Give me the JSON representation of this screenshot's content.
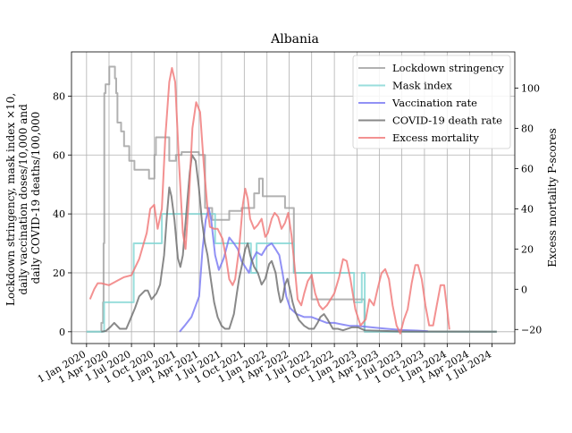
{
  "chart_data": {
    "type": "line",
    "title": "Albania",
    "ylabel_left_lines": [
      "Lockdown stringency, mask index ×10,",
      "daily vaccination doses/10,000 and",
      "daily COVID-19 deaths/100,000"
    ],
    "ylabel_right": "Excess mortality P-scores",
    "xlim": [
      "2019-11-01",
      "2024-10-01"
    ],
    "ylim_left": [
      -4,
      95
    ],
    "ylim_right": [
      -27,
      118
    ],
    "x_ticks": [
      "2020-01-01",
      "2020-04-01",
      "2020-07-01",
      "2020-10-01",
      "2021-01-01",
      "2021-04-01",
      "2021-07-01",
      "2021-10-01",
      "2022-01-01",
      "2022-04-01",
      "2022-07-01",
      "2022-10-01",
      "2023-01-01",
      "2023-04-01",
      "2023-07-01",
      "2023-10-01",
      "2024-01-01",
      "2024-04-01",
      "2024-07-01"
    ],
    "x_tick_labels": [
      "1 Jan 2020",
      "1 Apr 2020",
      "1 Jul 2020",
      "1 Oct 2020",
      "1 Jan 2021",
      "1 Apr 2021",
      "1 Jul 2021",
      "1 Oct 2021",
      "1 Jan 2022",
      "1 Apr 2022",
      "1 Jul 2022",
      "1 Oct 2022",
      "1 Jan 2023",
      "1 Apr 2023",
      "1 Jul 2023",
      "1 Oct 2023",
      "1 Jan 2024",
      "1 Apr 2024",
      "1 Jul 2024"
    ],
    "y_ticks_left": [
      0,
      20,
      40,
      60,
      80
    ],
    "y_ticks_right": [
      -20,
      0,
      20,
      40,
      60,
      80,
      100
    ],
    "grid": true,
    "legend_position": "top-right",
    "series": [
      {
        "name": "Lockdown stringency",
        "axis": "left",
        "color": "#9e9e9e",
        "step": true,
        "points": [
          [
            "2020-01-01",
            0
          ],
          [
            "2020-02-25",
            0
          ],
          [
            "2020-03-01",
            3
          ],
          [
            "2020-03-08",
            10
          ],
          [
            "2020-03-10",
            30
          ],
          [
            "2020-03-13",
            81
          ],
          [
            "2020-03-18",
            84
          ],
          [
            "2020-04-02",
            90
          ],
          [
            "2020-04-25",
            86
          ],
          [
            "2020-04-30",
            81
          ],
          [
            "2020-05-05",
            71
          ],
          [
            "2020-05-20",
            68
          ],
          [
            "2020-06-01",
            63
          ],
          [
            "2020-06-22",
            58
          ],
          [
            "2020-07-13",
            55
          ],
          [
            "2020-09-10",
            52
          ],
          [
            "2020-10-02",
            60
          ],
          [
            "2020-10-08",
            66
          ],
          [
            "2020-12-01",
            58
          ],
          [
            "2020-12-28",
            60
          ],
          [
            "2021-01-20",
            61
          ],
          [
            "2021-03-31",
            60
          ],
          [
            "2021-04-25",
            42
          ],
          [
            "2021-05-24",
            38
          ],
          [
            "2021-07-01",
            38
          ],
          [
            "2021-08-01",
            41
          ],
          [
            "2021-09-20",
            42
          ],
          [
            "2021-11-10",
            47
          ],
          [
            "2021-11-30",
            52
          ],
          [
            "2021-12-15",
            46
          ],
          [
            "2022-03-15",
            42
          ],
          [
            "2022-04-20",
            20
          ],
          [
            "2022-07-01",
            11
          ],
          [
            "2022-10-15",
            11
          ],
          [
            "2023-01-31",
            0
          ],
          [
            "2024-07-20",
            0
          ]
        ]
      },
      {
        "name": "Mask index",
        "axis": "left",
        "color": "#7fd6d3",
        "step": true,
        "points": [
          [
            "2020-01-01",
            0
          ],
          [
            "2020-02-25",
            0
          ],
          [
            "2020-03-12",
            10
          ],
          [
            "2020-07-10",
            30
          ],
          [
            "2020-11-01",
            40
          ],
          [
            "2021-06-05",
            30
          ],
          [
            "2021-07-01",
            30
          ],
          [
            "2021-10-15",
            30
          ],
          [
            "2021-10-28",
            20
          ],
          [
            "2021-11-20",
            30
          ],
          [
            "2022-04-20",
            20
          ],
          [
            "2022-12-20",
            10
          ],
          [
            "2023-01-20",
            20
          ],
          [
            "2023-02-01",
            0
          ],
          [
            "2024-07-20",
            0
          ]
        ]
      },
      {
        "name": "Vaccination rate",
        "axis": "left",
        "color": "#7676f2",
        "step": false,
        "points": [
          [
            "2021-01-12",
            0
          ],
          [
            "2021-02-01",
            2
          ],
          [
            "2021-03-01",
            5
          ],
          [
            "2021-04-01",
            12
          ],
          [
            "2021-04-15",
            28
          ],
          [
            "2021-04-28",
            38
          ],
          [
            "2021-05-10",
            42
          ],
          [
            "2021-05-20",
            38
          ],
          [
            "2021-06-05",
            26
          ],
          [
            "2021-06-20",
            21
          ],
          [
            "2021-07-10",
            25
          ],
          [
            "2021-08-01",
            32
          ],
          [
            "2021-08-20",
            30
          ],
          [
            "2021-09-05",
            28
          ],
          [
            "2021-09-20",
            24
          ],
          [
            "2021-10-05",
            22
          ],
          [
            "2021-10-20",
            20
          ],
          [
            "2021-11-01",
            24
          ],
          [
            "2021-11-20",
            27
          ],
          [
            "2021-12-10",
            26
          ],
          [
            "2022-01-01",
            29
          ],
          [
            "2022-01-20",
            30
          ],
          [
            "2022-02-05",
            28
          ],
          [
            "2022-02-20",
            26
          ],
          [
            "2022-03-05",
            20
          ],
          [
            "2022-03-20",
            12
          ],
          [
            "2022-04-05",
            8
          ],
          [
            "2022-05-01",
            6
          ],
          [
            "2022-06-01",
            5
          ],
          [
            "2022-07-01",
            5
          ],
          [
            "2022-08-01",
            4
          ],
          [
            "2022-09-01",
            3
          ],
          [
            "2022-10-01",
            3
          ],
          [
            "2022-11-01",
            2.5
          ],
          [
            "2022-12-01",
            2
          ],
          [
            "2023-01-01",
            2
          ],
          [
            "2023-03-01",
            1.5
          ],
          [
            "2023-05-01",
            1
          ],
          [
            "2023-07-01",
            0.6
          ],
          [
            "2023-09-01",
            0.4
          ],
          [
            "2023-10-15",
            0.2
          ]
        ]
      },
      {
        "name": "COVID-19 death rate",
        "axis": "left",
        "color": "#6b6b6b",
        "step": false,
        "points": [
          [
            "2020-03-01",
            0
          ],
          [
            "2020-03-20",
            0.3
          ],
          [
            "2020-04-05",
            1.5
          ],
          [
            "2020-04-22",
            3
          ],
          [
            "2020-05-15",
            1
          ],
          [
            "2020-06-10",
            1
          ],
          [
            "2020-06-25",
            4
          ],
          [
            "2020-07-15",
            8
          ],
          [
            "2020-08-01",
            12
          ],
          [
            "2020-08-25",
            14
          ],
          [
            "2020-09-05",
            14
          ],
          [
            "2020-09-20",
            11
          ],
          [
            "2020-10-10",
            13
          ],
          [
            "2020-10-25",
            16
          ],
          [
            "2020-11-10",
            26
          ],
          [
            "2020-11-22",
            40
          ],
          [
            "2020-12-01",
            49
          ],
          [
            "2020-12-10",
            46
          ],
          [
            "2020-12-22",
            38
          ],
          [
            "2021-01-05",
            25
          ],
          [
            "2021-01-15",
            22
          ],
          [
            "2021-01-25",
            26
          ],
          [
            "2021-02-08",
            40
          ],
          [
            "2021-02-22",
            54
          ],
          [
            "2021-03-03",
            60
          ],
          [
            "2021-03-18",
            58
          ],
          [
            "2021-03-31",
            49
          ],
          [
            "2021-04-12",
            38
          ],
          [
            "2021-04-25",
            30
          ],
          [
            "2021-05-05",
            26
          ],
          [
            "2021-05-18",
            18
          ],
          [
            "2021-06-01",
            10
          ],
          [
            "2021-06-15",
            5
          ],
          [
            "2021-07-01",
            2
          ],
          [
            "2021-07-15",
            1
          ],
          [
            "2021-08-01",
            1
          ],
          [
            "2021-08-20",
            6
          ],
          [
            "2021-09-01",
            13
          ],
          [
            "2021-09-10",
            18
          ],
          [
            "2021-09-20",
            22
          ],
          [
            "2021-10-05",
            28
          ],
          [
            "2021-10-15",
            30
          ],
          [
            "2021-10-25",
            26
          ],
          [
            "2021-11-10",
            22
          ],
          [
            "2021-11-25",
            20
          ],
          [
            "2021-12-10",
            16
          ],
          [
            "2021-12-25",
            18
          ],
          [
            "2022-01-10",
            23
          ],
          [
            "2022-01-20",
            24
          ],
          [
            "2022-02-05",
            20
          ],
          [
            "2022-02-15",
            14
          ],
          [
            "2022-02-25",
            10
          ],
          [
            "2022-03-05",
            11
          ],
          [
            "2022-03-15",
            16
          ],
          [
            "2022-03-25",
            18
          ],
          [
            "2022-04-05",
            14
          ],
          [
            "2022-04-15",
            10
          ],
          [
            "2022-04-25",
            7
          ],
          [
            "2022-05-10",
            4
          ],
          [
            "2022-06-01",
            2
          ],
          [
            "2022-06-20",
            1
          ],
          [
            "2022-07-10",
            1
          ],
          [
            "2022-07-25",
            3
          ],
          [
            "2022-08-05",
            5
          ],
          [
            "2022-08-20",
            6
          ],
          [
            "2022-09-05",
            4
          ],
          [
            "2022-09-25",
            1
          ],
          [
            "2022-10-15",
            1
          ],
          [
            "2022-11-05",
            0.5
          ],
          [
            "2022-12-10",
            1.5
          ],
          [
            "2023-01-05",
            1.5
          ],
          [
            "2023-02-01",
            0.5
          ],
          [
            "2023-04-01",
            0.3
          ],
          [
            "2023-07-01",
            0.1
          ],
          [
            "2024-07-20",
            0
          ]
        ]
      },
      {
        "name": "Excess mortality",
        "axis": "right",
        "color": "#f07676",
        "step": false,
        "points": [
          [
            "2020-01-15",
            -5
          ],
          [
            "2020-02-01",
            0
          ],
          [
            "2020-02-15",
            3
          ],
          [
            "2020-03-01",
            3
          ],
          [
            "2020-04-01",
            2
          ],
          [
            "2020-05-01",
            4
          ],
          [
            "2020-06-01",
            6
          ],
          [
            "2020-07-01",
            7
          ],
          [
            "2020-08-01",
            15
          ],
          [
            "2020-09-01",
            28
          ],
          [
            "2020-09-15",
            40
          ],
          [
            "2020-10-01",
            42
          ],
          [
            "2020-10-15",
            30
          ],
          [
            "2020-11-01",
            40
          ],
          [
            "2020-11-15",
            75
          ],
          [
            "2020-12-01",
            103
          ],
          [
            "2020-12-12",
            110
          ],
          [
            "2020-12-25",
            103
          ],
          [
            "2021-01-10",
            62
          ],
          [
            "2021-01-25",
            28
          ],
          [
            "2021-02-05",
            20
          ],
          [
            "2021-02-20",
            48
          ],
          [
            "2021-03-05",
            80
          ],
          [
            "2021-03-20",
            93
          ],
          [
            "2021-04-05",
            88
          ],
          [
            "2021-04-20",
            62
          ],
          [
            "2021-05-05",
            40
          ],
          [
            "2021-05-15",
            31
          ],
          [
            "2021-06-01",
            30
          ],
          [
            "2021-06-15",
            30
          ],
          [
            "2021-07-05",
            25
          ],
          [
            "2021-07-20",
            15
          ],
          [
            "2021-08-01",
            5
          ],
          [
            "2021-08-15",
            2
          ],
          [
            "2021-08-25",
            5
          ],
          [
            "2021-09-10",
            20
          ],
          [
            "2021-09-25",
            42
          ],
          [
            "2021-10-05",
            50
          ],
          [
            "2021-10-15",
            45
          ],
          [
            "2021-10-25",
            35
          ],
          [
            "2021-11-10",
            30
          ],
          [
            "2021-11-25",
            32
          ],
          [
            "2021-12-10",
            35
          ],
          [
            "2021-12-25",
            26
          ],
          [
            "2022-01-05",
            28
          ],
          [
            "2022-01-20",
            35
          ],
          [
            "2022-02-01",
            38
          ],
          [
            "2022-02-15",
            36
          ],
          [
            "2022-03-01",
            30
          ],
          [
            "2022-03-15",
            33
          ],
          [
            "2022-03-28",
            38
          ],
          [
            "2022-04-10",
            27
          ],
          [
            "2022-04-25",
            9
          ],
          [
            "2022-05-05",
            -5
          ],
          [
            "2022-05-20",
            -8
          ],
          [
            "2022-06-01",
            -2
          ],
          [
            "2022-06-15",
            4
          ],
          [
            "2022-07-01",
            7
          ],
          [
            "2022-07-15",
            -2
          ],
          [
            "2022-08-01",
            -8
          ],
          [
            "2022-08-15",
            -10
          ],
          [
            "2022-09-01",
            -8
          ],
          [
            "2022-10-01",
            -2
          ],
          [
            "2022-10-20",
            6
          ],
          [
            "2022-11-05",
            15
          ],
          [
            "2022-11-20",
            14
          ],
          [
            "2022-12-05",
            5
          ],
          [
            "2022-12-25",
            -10
          ],
          [
            "2023-01-15",
            -18
          ],
          [
            "2023-02-05",
            -15
          ],
          [
            "2023-02-20",
            -5
          ],
          [
            "2023-03-10",
            -8
          ],
          [
            "2023-03-25",
            0
          ],
          [
            "2023-04-10",
            8
          ],
          [
            "2023-04-25",
            10
          ],
          [
            "2023-05-10",
            5
          ],
          [
            "2023-05-25",
            -8
          ],
          [
            "2023-06-10",
            -18
          ],
          [
            "2023-06-25",
            -22
          ],
          [
            "2023-07-10",
            -15
          ],
          [
            "2023-07-25",
            -10
          ],
          [
            "2023-08-10",
            3
          ],
          [
            "2023-08-25",
            12
          ],
          [
            "2023-09-05",
            12
          ],
          [
            "2023-09-20",
            5
          ],
          [
            "2023-10-05",
            -8
          ],
          [
            "2023-10-20",
            -18
          ],
          [
            "2023-11-05",
            -18
          ],
          [
            "2023-11-20",
            -8
          ],
          [
            "2023-12-05",
            2
          ],
          [
            "2023-12-20",
            2
          ],
          [
            "2024-01-01",
            -10
          ],
          [
            "2024-01-10",
            -20
          ]
        ]
      }
    ]
  }
}
